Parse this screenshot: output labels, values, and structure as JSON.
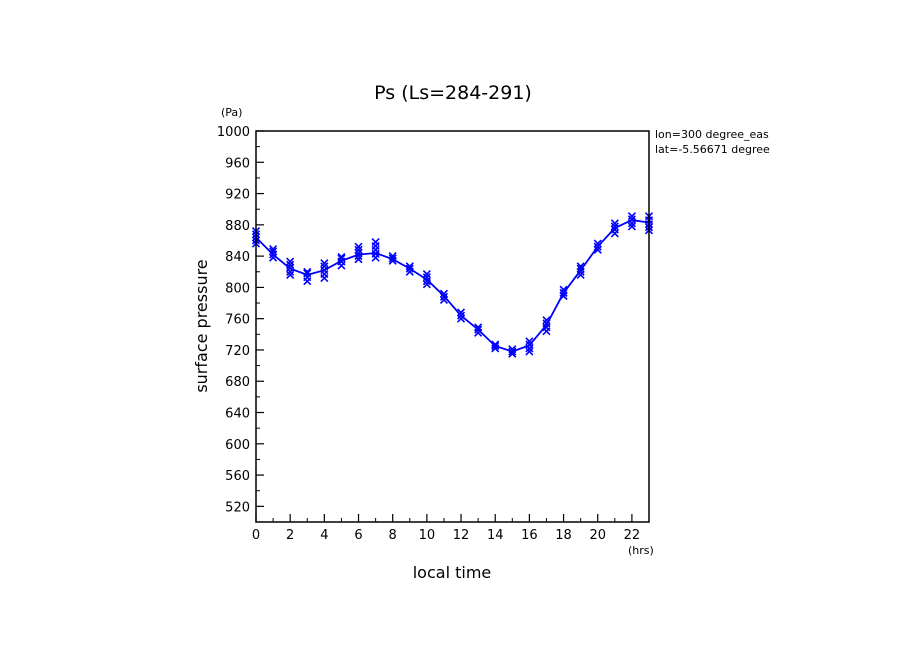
{
  "chart_data": {
    "type": "line",
    "title": "Ps (Ls=284-291)",
    "xlabel": "local time",
    "ylabel": "surface pressure",
    "x_unit": "(hrs)",
    "y_unit": "(Pa)",
    "xlim": [
      0,
      23
    ],
    "ylim": [
      500,
      1000
    ],
    "x_ticks": [
      0,
      2,
      4,
      6,
      8,
      10,
      12,
      14,
      16,
      18,
      20,
      22
    ],
    "y_ticks": [
      520,
      560,
      600,
      640,
      680,
      720,
      760,
      800,
      840,
      880,
      920,
      960,
      1000
    ],
    "annotations": [
      "lon=300 degree_eas",
      "lat=-5.56671 degree"
    ],
    "series": [
      {
        "style": "line",
        "color": "#0000ff",
        "x": [
          0,
          1,
          2,
          3,
          4,
          5,
          6,
          7,
          8,
          9,
          10,
          11,
          12,
          13,
          14,
          15,
          16,
          17,
          18,
          19,
          20,
          21,
          22,
          23
        ],
        "y": [
          864,
          842,
          824,
          816,
          822,
          834,
          842,
          844,
          836,
          824,
          810,
          789,
          764,
          746,
          725,
          718,
          726,
          752,
          793,
          822,
          852,
          876,
          886,
          883
        ]
      },
      {
        "style": "marker",
        "marker": "x",
        "color": "#0000ff",
        "points": [
          [
            0,
            856
          ],
          [
            0,
            860
          ],
          [
            0,
            864
          ],
          [
            0,
            868
          ],
          [
            0,
            872
          ],
          [
            1,
            838
          ],
          [
            1,
            842
          ],
          [
            1,
            846
          ],
          [
            1,
            849
          ],
          [
            2,
            816
          ],
          [
            2,
            820
          ],
          [
            2,
            825
          ],
          [
            2,
            829
          ],
          [
            2,
            833
          ],
          [
            3,
            808
          ],
          [
            3,
            813
          ],
          [
            3,
            818
          ],
          [
            3,
            820
          ],
          [
            4,
            812
          ],
          [
            4,
            817
          ],
          [
            4,
            822
          ],
          [
            4,
            827
          ],
          [
            4,
            831
          ],
          [
            5,
            828
          ],
          [
            5,
            833
          ],
          [
            5,
            837
          ],
          [
            5,
            839
          ],
          [
            6,
            836
          ],
          [
            6,
            840
          ],
          [
            6,
            844
          ],
          [
            6,
            848
          ],
          [
            6,
            852
          ],
          [
            7,
            838
          ],
          [
            7,
            843
          ],
          [
            7,
            848
          ],
          [
            7,
            853
          ],
          [
            7,
            858
          ],
          [
            8,
            834
          ],
          [
            8,
            837
          ],
          [
            8,
            840
          ],
          [
            9,
            820
          ],
          [
            9,
            824
          ],
          [
            9,
            827
          ],
          [
            10,
            804
          ],
          [
            10,
            808
          ],
          [
            10,
            813
          ],
          [
            10,
            817
          ],
          [
            11,
            784
          ],
          [
            11,
            788
          ],
          [
            11,
            792
          ],
          [
            12,
            760
          ],
          [
            12,
            764
          ],
          [
            12,
            768
          ],
          [
            13,
            742
          ],
          [
            13,
            746
          ],
          [
            13,
            749
          ],
          [
            14,
            722
          ],
          [
            14,
            725
          ],
          [
            14,
            727
          ],
          [
            15,
            715
          ],
          [
            15,
            718
          ],
          [
            15,
            721
          ],
          [
            16,
            718
          ],
          [
            16,
            722
          ],
          [
            16,
            727
          ],
          [
            16,
            731
          ],
          [
            17,
            744
          ],
          [
            17,
            749
          ],
          [
            17,
            754
          ],
          [
            17,
            758
          ],
          [
            18,
            789
          ],
          [
            18,
            793
          ],
          [
            18,
            797
          ],
          [
            19,
            816
          ],
          [
            19,
            820
          ],
          [
            19,
            824
          ],
          [
            19,
            827
          ],
          [
            20,
            848
          ],
          [
            20,
            852
          ],
          [
            20,
            856
          ],
          [
            21,
            869
          ],
          [
            21,
            874
          ],
          [
            21,
            878
          ],
          [
            21,
            882
          ],
          [
            22,
            878
          ],
          [
            22,
            882
          ],
          [
            22,
            887
          ],
          [
            22,
            891
          ],
          [
            23,
            873
          ],
          [
            23,
            877
          ],
          [
            23,
            881
          ],
          [
            23,
            886
          ],
          [
            23,
            891
          ]
        ]
      }
    ]
  }
}
